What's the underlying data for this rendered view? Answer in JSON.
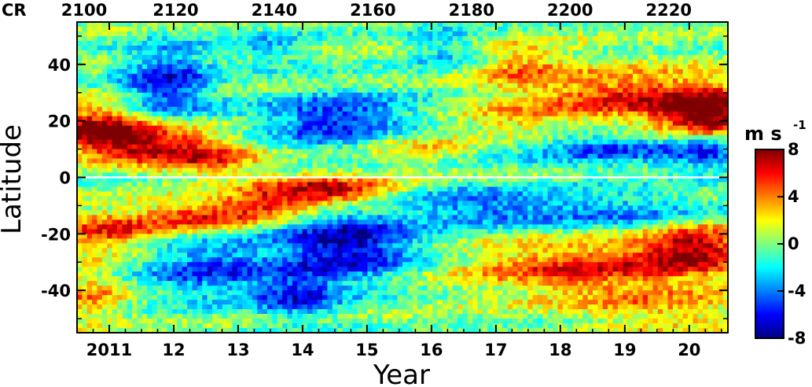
{
  "chart_data": {
    "type": "heatmap",
    "title": "",
    "xlabel": "Year",
    "ylabel": "Latitude",
    "xlim": [
      2010.5,
      2020.6
    ],
    "ylim": [
      -55,
      55
    ],
    "x_ticks": [
      {
        "value": 2011,
        "label": "2011"
      },
      {
        "value": 2012,
        "label": "12"
      },
      {
        "value": 2013,
        "label": "13"
      },
      {
        "value": 2014,
        "label": "14"
      },
      {
        "value": 2015,
        "label": "15"
      },
      {
        "value": 2016,
        "label": "16"
      },
      {
        "value": 2017,
        "label": "17"
      },
      {
        "value": 2018,
        "label": "18"
      },
      {
        "value": 2019,
        "label": "19"
      },
      {
        "value": 2020,
        "label": "20"
      }
    ],
    "y_ticks": [
      {
        "value": 40,
        "label": "40"
      },
      {
        "value": 20,
        "label": "20"
      },
      {
        "value": 0,
        "label": "0"
      },
      {
        "value": -20,
        "label": "-20"
      },
      {
        "value": -40,
        "label": "-40"
      }
    ],
    "top_axis": {
      "label_prefix": "CR",
      "xlim": [
        2100,
        2232
      ],
      "ticks": [
        {
          "value": 2100,
          "label": "2100"
        },
        {
          "value": 2120,
          "label": "2120"
        },
        {
          "value": 2140,
          "label": "2140"
        },
        {
          "value": 2160,
          "label": "2160"
        },
        {
          "value": 2180,
          "label": "2180"
        },
        {
          "value": 2200,
          "label": "2200"
        },
        {
          "value": 2220,
          "label": "2220"
        }
      ]
    },
    "colorbar": {
      "label": "m s",
      "label_exponent": "-1",
      "range": [
        -8,
        8
      ],
      "ticks": [
        {
          "value": 8,
          "label": "8"
        },
        {
          "value": 4,
          "label": "4"
        },
        {
          "value": 0,
          "label": "0"
        },
        {
          "value": -4,
          "label": "-4"
        },
        {
          "value": -8,
          "label": "-8"
        }
      ],
      "colormap": [
        "#00007f",
        "#0000ff",
        "#007fff",
        "#00ffff",
        "#7fff7f",
        "#ffff00",
        "#ff7f00",
        "#ff0000",
        "#7f0000"
      ]
    },
    "equator_line_color": "#ffffff",
    "features": [
      {
        "x": 2010.8,
        "y": 17,
        "sx": 0.6,
        "sy": 6,
        "v": 7.5
      },
      {
        "x": 2011.8,
        "y": 12,
        "sx": 0.7,
        "sy": 5,
        "v": 6.5
      },
      {
        "x": 2012.6,
        "y": 6,
        "sx": 0.6,
        "sy": 4,
        "v": 4
      },
      {
        "x": 2011.9,
        "y": 33,
        "sx": 0.5,
        "sy": 10,
        "v": -6
      },
      {
        "x": 2014.6,
        "y": 20,
        "sx": 0.9,
        "sy": 7,
        "v": -6
      },
      {
        "x": 2015.7,
        "y": 12,
        "sx": 0.6,
        "sy": 5,
        "v": 3
      },
      {
        "x": 2017.3,
        "y": 40,
        "sx": 0.6,
        "sy": 6,
        "v": 3.5
      },
      {
        "x": 2019.3,
        "y": 28,
        "sx": 1.3,
        "sy": 7,
        "v": 6
      },
      {
        "x": 2020.3,
        "y": 22,
        "sx": 0.5,
        "sy": 5,
        "v": 7
      },
      {
        "x": 2018.8,
        "y": 10,
        "sx": 1.0,
        "sy": 5,
        "v": -4.5
      },
      {
        "x": 2020.3,
        "y": 8,
        "sx": 0.4,
        "sy": 4,
        "v": -4
      },
      {
        "x": 2017.2,
        "y": 20,
        "sx": 0.5,
        "sy": 4,
        "v": 2.5
      },
      {
        "x": 2011.0,
        "y": -19,
        "sx": 0.6,
        "sy": 5,
        "v": 5.5
      },
      {
        "x": 2012.4,
        "y": -14,
        "sx": 0.6,
        "sy": 4,
        "v": 5.5
      },
      {
        "x": 2013.4,
        "y": -10,
        "sx": 0.5,
        "sy": 4,
        "v": 5
      },
      {
        "x": 2014.4,
        "y": -5,
        "sx": 0.7,
        "sy": 4,
        "v": 7.5
      },
      {
        "x": 2014.7,
        "y": -24,
        "sx": 0.8,
        "sy": 9,
        "v": -7.5
      },
      {
        "x": 2012.5,
        "y": -32,
        "sx": 0.7,
        "sy": 8,
        "v": -5
      },
      {
        "x": 2013.9,
        "y": -42,
        "sx": 0.5,
        "sy": 6,
        "v": -5
      },
      {
        "x": 2016.7,
        "y": -10,
        "sx": 0.8,
        "sy": 5,
        "v": -4
      },
      {
        "x": 2018.9,
        "y": -12,
        "sx": 1.2,
        "sy": 5,
        "v": -4
      },
      {
        "x": 2018.5,
        "y": -32,
        "sx": 1.4,
        "sy": 7,
        "v": 5.5
      },
      {
        "x": 2020.1,
        "y": -24,
        "sx": 0.6,
        "sy": 6,
        "v": 6.5
      },
      {
        "x": 2019.6,
        "y": -47,
        "sx": 1.0,
        "sy": 5,
        "v": 3
      },
      {
        "x": 2010.7,
        "y": -42,
        "sx": 0.4,
        "sy": 7,
        "v": 3.5
      },
      {
        "x": 2016.3,
        "y": 45,
        "sx": 0.5,
        "sy": 6,
        "v": -3
      },
      {
        "x": 2013.5,
        "y": 46,
        "sx": 0.5,
        "sy": 5,
        "v": -2.5
      }
    ]
  }
}
